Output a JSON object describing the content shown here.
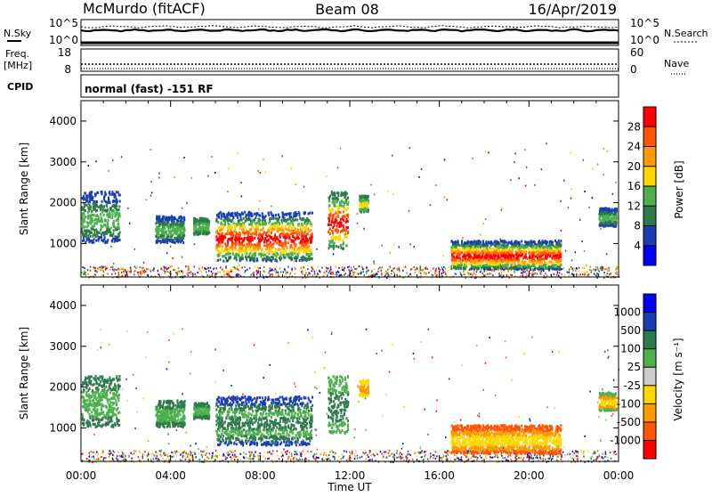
{
  "header": {
    "station": "McMurdo (fitACF)",
    "beam": "Beam 08",
    "date": "16/Apr/2019"
  },
  "panels": {
    "nsky": {
      "label": "N.Sky",
      "left_ticks": [
        "10^5",
        "10^0"
      ]
    },
    "nsearch": {
      "label": "N.Search",
      "right_ticks": [
        "10^5",
        "10^0"
      ]
    },
    "freq": {
      "label_top": "Freq.",
      "label_unit": "[MHz]",
      "left_ticks": [
        "18",
        "8"
      ]
    },
    "nave": {
      "label": "Nave",
      "right_ticks": [
        "60",
        "0"
      ]
    },
    "cpid": {
      "label": "CPID",
      "text": "normal (fast) -151 RF"
    }
  },
  "chart_data": [
    {
      "type": "heatmap",
      "name": "power",
      "ylabel": "Slant Range [km]",
      "xlabel": "",
      "ylim": [
        180,
        4500
      ],
      "xlim": [
        0,
        24
      ],
      "yticks": [
        "1000",
        "2000",
        "3000",
        "4000"
      ],
      "colorbar": {
        "label": "Power [dB]",
        "ticks": [
          "4",
          "8",
          "12",
          "16",
          "20",
          "24",
          "28"
        ],
        "colors": [
          "#0000ff",
          "#1a3fb5",
          "#2d7a4a",
          "#4db04d",
          "#ffd700",
          "#ff9900",
          "#ff5500",
          "#ff0000"
        ]
      },
      "blobs": [
        {
          "t": [
            0.0,
            1.7
          ],
          "r": [
            1050,
            2300
          ],
          "c": [
            3,
            2,
            1
          ]
        },
        {
          "t": [
            3.3,
            4.6
          ],
          "r": [
            1050,
            1700
          ],
          "c": [
            3,
            2,
            1
          ]
        },
        {
          "t": [
            5.0,
            5.7
          ],
          "r": [
            1250,
            1650
          ],
          "c": [
            3,
            2
          ]
        },
        {
          "t": [
            6.0,
            10.3
          ],
          "r": [
            600,
            1800
          ],
          "c": [
            7,
            6,
            5,
            4,
            3,
            2,
            1
          ]
        },
        {
          "t": [
            11.0,
            11.9
          ],
          "r": [
            900,
            2300
          ],
          "c": [
            7,
            6,
            4,
            3,
            2
          ]
        },
        {
          "t": [
            12.4,
            12.8
          ],
          "r": [
            1800,
            2200
          ],
          "c": [
            4,
            3,
            2
          ]
        },
        {
          "t": [
            16.5,
            21.4
          ],
          "r": [
            400,
            1100
          ],
          "c": [
            7,
            6,
            5,
            4,
            3,
            2,
            1
          ]
        },
        {
          "t": [
            23.1,
            23.9
          ],
          "r": [
            1450,
            1900
          ],
          "c": [
            3,
            2,
            1
          ]
        }
      ]
    },
    {
      "type": "heatmap",
      "name": "velocity",
      "ylabel": "Slant Range [km]",
      "xlabel": "Time UT",
      "ylim": [
        180,
        4500
      ],
      "xlim": [
        0,
        24
      ],
      "yticks": [
        "1000",
        "2000",
        "3000",
        "4000"
      ],
      "xticks": [
        "00:00",
        "04:00",
        "08:00",
        "12:00",
        "16:00",
        "20:00",
        "00:00"
      ],
      "colorbar": {
        "label": "Velocity [m s⁻¹]",
        "ticks": [
          "1000",
          "500",
          "100",
          "25",
          "-25",
          "-100",
          "-500",
          "-1000"
        ],
        "colors": [
          "#0000ff",
          "#1a3fb5",
          "#2d7a4a",
          "#4db04d",
          "#cccccc",
          "#ffd700",
          "#ff9900",
          "#ff5500",
          "#ff0000"
        ]
      },
      "blobs": [
        {
          "t": [
            0.0,
            1.7
          ],
          "r": [
            1050,
            2300
          ],
          "c": [
            3,
            2
          ]
        },
        {
          "t": [
            3.3,
            4.6
          ],
          "r": [
            1050,
            1700
          ],
          "c": [
            3,
            2
          ]
        },
        {
          "t": [
            5.0,
            5.7
          ],
          "r": [
            1250,
            1650
          ],
          "c": [
            3,
            2
          ]
        },
        {
          "t": [
            6.0,
            10.3
          ],
          "r": [
            600,
            1800
          ],
          "c": [
            2,
            3,
            2,
            1
          ]
        },
        {
          "t": [
            11.0,
            11.9
          ],
          "r": [
            900,
            2300
          ],
          "c": [
            2,
            3
          ]
        },
        {
          "t": [
            12.4,
            12.8
          ],
          "r": [
            1800,
            2200
          ],
          "c": [
            6,
            5
          ]
        },
        {
          "t": [
            16.5,
            21.4
          ],
          "r": [
            400,
            1100
          ],
          "c": [
            5,
            6,
            7
          ]
        },
        {
          "t": [
            23.1,
            23.9
          ],
          "r": [
            1450,
            1900
          ],
          "c": [
            5,
            6,
            3
          ]
        }
      ]
    }
  ]
}
